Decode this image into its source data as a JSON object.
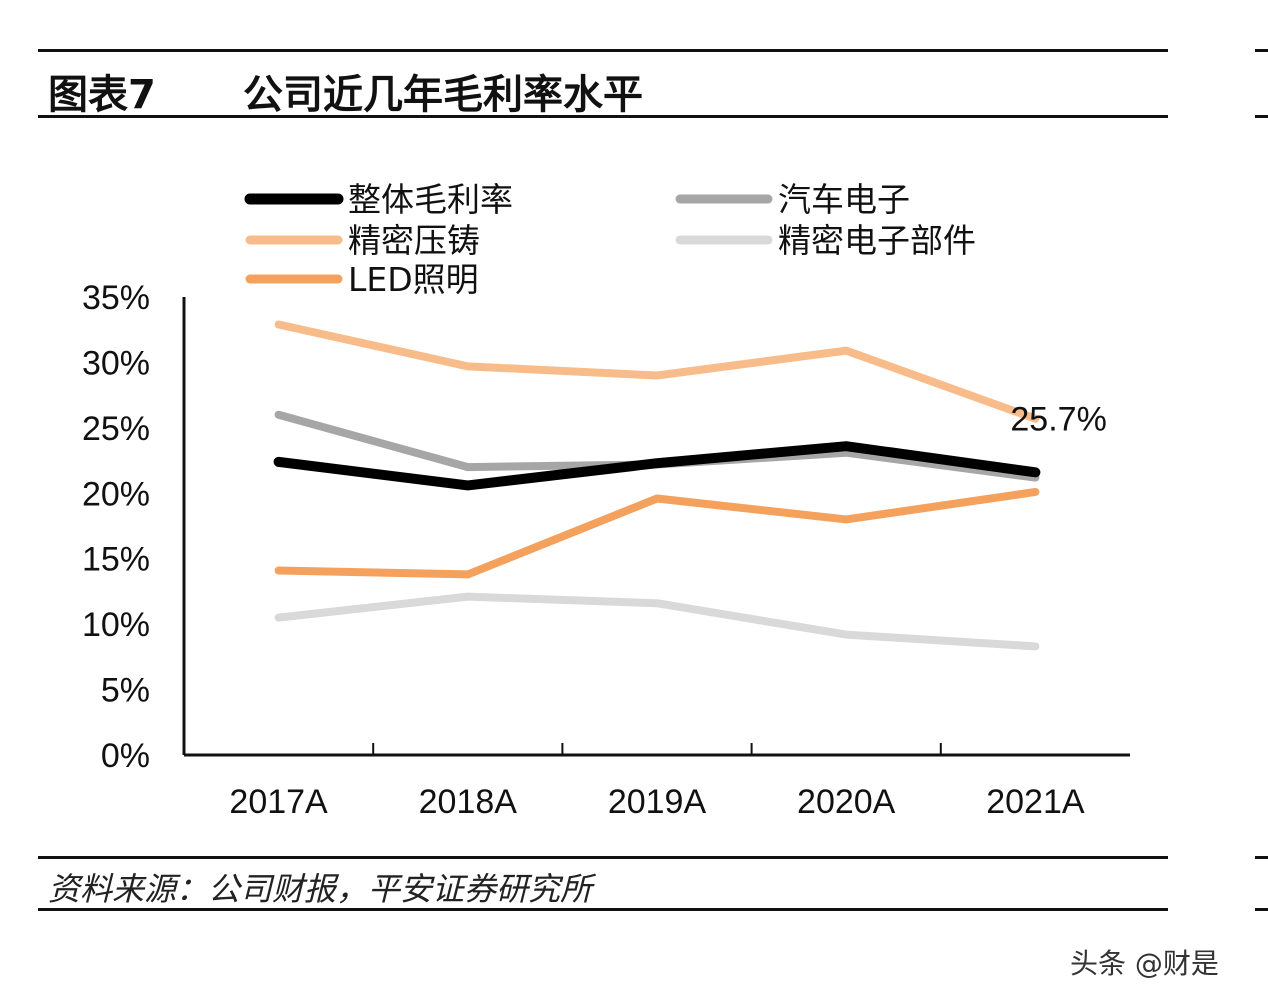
{
  "header": {
    "figure_label": "图表7",
    "title": "公司近几年毛利率水平"
  },
  "footer": {
    "source": "资料来源：公司财报，平安证券研究所"
  },
  "watermark": "头条 @财是",
  "chart_data": {
    "type": "line",
    "categories": [
      "2017A",
      "2018A",
      "2019A",
      "2020A",
      "2021A"
    ],
    "ylim": [
      0,
      35
    ],
    "yticks": [
      "0%",
      "5%",
      "10%",
      "15%",
      "20%",
      "25%",
      "30%",
      "35%"
    ],
    "grid": false,
    "legend_position": "top",
    "series": [
      {
        "name": "整体毛利率",
        "color": "#000000",
        "values": [
          22.4,
          20.6,
          22.3,
          23.6,
          21.6
        ]
      },
      {
        "name": "汽车电子",
        "color": "#a6a6a6",
        "values": [
          26.0,
          22.0,
          22.2,
          23.1,
          21.2
        ]
      },
      {
        "name": "精密压铸",
        "color": "#f8bc8a",
        "values": [
          32.9,
          29.7,
          29.0,
          30.9,
          25.7
        ]
      },
      {
        "name": "精密电子部件",
        "color": "#d9d9d9",
        "values": [
          10.5,
          12.1,
          11.6,
          9.2,
          8.3
        ]
      },
      {
        "name": "LED照明",
        "color": "#f4a15d",
        "values": [
          14.1,
          13.8,
          19.6,
          18.0,
          20.1
        ]
      }
    ],
    "annotations": [
      {
        "text": "25.7%"
      }
    ]
  }
}
